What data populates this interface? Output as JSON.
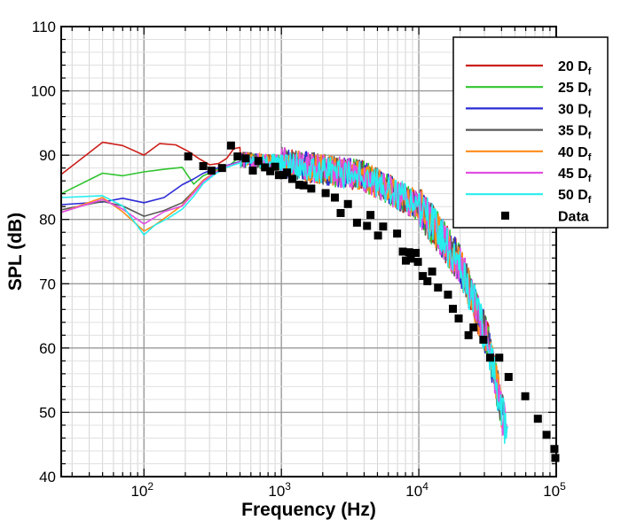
{
  "chart_data": {
    "type": "line",
    "title": "",
    "xlabel": "Frequency (Hz)",
    "ylabel": "SPL (dB)",
    "x_scale": "log",
    "xlim": [
      25,
      100000
    ],
    "ylim": [
      40,
      110
    ],
    "y_ticks": [
      40,
      50,
      60,
      70,
      80,
      90,
      100,
      110
    ],
    "x_ticks": [
      {
        "value": 100,
        "base": "10",
        "exp": "2"
      },
      {
        "value": 1000,
        "base": "10",
        "exp": "3"
      },
      {
        "value": 10000,
        "base": "10",
        "exp": "4"
      },
      {
        "value": 100000,
        "base": "10",
        "exp": "5"
      }
    ],
    "grid": true,
    "legend_position": "top-right",
    "series": [
      {
        "name": "20 D",
        "sub": "f",
        "color": "#cc1f1a",
        "x": [
          25,
          50,
          70,
          100,
          130,
          170,
          210,
          250,
          300,
          350,
          400,
          450,
          500
        ],
        "y": [
          87,
          92,
          91.5,
          90,
          91.8,
          91.6,
          90.6,
          89.5,
          88.5,
          88.7,
          89.5,
          91,
          91.2
        ]
      },
      {
        "name": "25 D",
        "sub": "f",
        "color": "#2fc52f",
        "x": [
          25,
          50,
          70,
          100,
          140,
          190,
          230,
          270,
          320,
          380,
          430,
          500
        ],
        "y": [
          84,
          87.2,
          86.8,
          87.4,
          87.8,
          88.1,
          85.5,
          86.8,
          87.5,
          88.1,
          88.6,
          89.8
        ]
      },
      {
        "name": "30 D",
        "sub": "f",
        "color": "#2b2bd6",
        "x": [
          25,
          50,
          70,
          100,
          140,
          190,
          230,
          270,
          330,
          400,
          500
        ],
        "y": [
          82.3,
          82.7,
          83.3,
          82.6,
          83.4,
          85.4,
          86.3,
          87.2,
          87.9,
          88.4,
          89
        ]
      },
      {
        "name": "35 D",
        "sub": "f",
        "color": "#595959",
        "x": [
          25,
          50,
          70,
          100,
          140,
          190,
          230,
          270,
          330,
          400,
          500
        ],
        "y": [
          81.5,
          82.8,
          82.1,
          80.5,
          81.4,
          82.6,
          84.4,
          86.1,
          87.2,
          88.3,
          88.9
        ]
      },
      {
        "name": "40 D",
        "sub": "f",
        "color": "#ff8c1a",
        "x": [
          25,
          50,
          70,
          100,
          120,
          150,
          190,
          230,
          270,
          330,
          400,
          500
        ],
        "y": [
          81.1,
          83.4,
          81.2,
          78.2,
          79.1,
          80.6,
          82.2,
          84.3,
          86.1,
          87.4,
          88.3,
          88.9
        ]
      },
      {
        "name": "45 D",
        "sub": "f",
        "color": "#e24ee2",
        "x": [
          25,
          50,
          70,
          100,
          140,
          190,
          230,
          270,
          330,
          400,
          500
        ],
        "y": [
          81.1,
          83.1,
          81.6,
          79.3,
          81.2,
          82.1,
          84.1,
          85.9,
          87.3,
          88.3,
          88.9
        ]
      },
      {
        "name": "50 D",
        "sub": "f",
        "color": "#27eded",
        "x": [
          25,
          50,
          70,
          100,
          120,
          150,
          190,
          230,
          270,
          330,
          400,
          500
        ],
        "y": [
          83.4,
          83.7,
          82.1,
          77.6,
          79.1,
          80.2,
          81.6,
          83.6,
          85.6,
          87.1,
          88.1,
          88.8
        ]
      }
    ],
    "data": {
      "name": "Data",
      "color": "#000000",
      "x": [
        210,
        270,
        310,
        370,
        430,
        480,
        550,
        620,
        680,
        760,
        830,
        900,
        960,
        1030,
        1100,
        1200,
        1350,
        1450,
        1650,
        2100,
        2450,
        2700,
        3050,
        3550,
        4200,
        4450,
        5050,
        5500,
        6950,
        7650,
        8050,
        8500,
        8750,
        9500,
        9850,
        10700,
        11550,
        12500,
        13800,
        16300,
        17700,
        19500,
        23000,
        25000,
        29500,
        33000,
        38500,
        45000,
        59500,
        73500,
        85000,
        97000,
        98500
      ],
      "y": [
        89.8,
        88.3,
        87.6,
        88.0,
        91.5,
        89.8,
        89.5,
        87.6,
        89.1,
        88.1,
        87.5,
        88.2,
        86.9,
        86.9,
        87.3,
        86.3,
        85.4,
        85.3,
        84.8,
        84.1,
        83.4,
        81.0,
        82.4,
        79.5,
        79.0,
        80.7,
        77.5,
        78.9,
        77.8,
        75.0,
        73.6,
        74.9,
        73.9,
        74.8,
        73.4,
        71.2,
        70.4,
        71.9,
        69.4,
        68.3,
        66.1,
        64.6,
        62.0,
        63.2,
        61.3,
        58.5,
        58.5,
        55.5,
        52.5,
        49.0,
        46.5,
        44.3,
        42.9
      ]
    }
  }
}
